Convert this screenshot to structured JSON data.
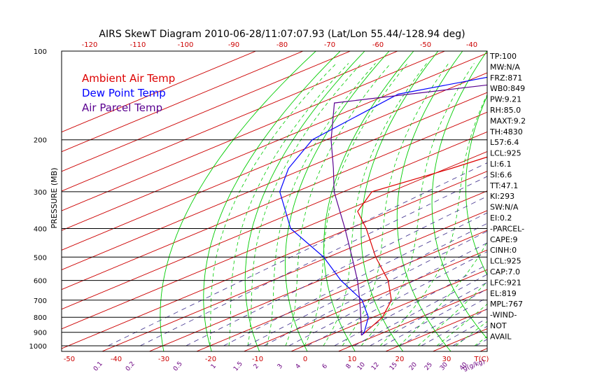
{
  "title": "AIRS SkewT Diagram 2010-06-28/11:07:07.93 (Lat/Lon 55.44/-128.94 deg)",
  "ylabel": "PRESSURE (MB)",
  "xlabel_right": "T(C)",
  "mixing_ratio_unit_label": "g(g/kg)",
  "colors": {
    "frame": "#000000",
    "isotherm": "#cc0000",
    "dry_adiabat": "#00cc00",
    "moist_adiabat": "#00cc00",
    "mixing_ratio": "#3a2a8a",
    "axis_text_red": "#cc0000",
    "axis_text_mix": "#6a0080",
    "ambient": "#dd0000",
    "dewpoint": "#0000ff",
    "parcel": "#5a0090"
  },
  "chart_data": {
    "type": "line",
    "subtype": "skew-T log-p",
    "y_scale": "log",
    "pressure_levels": [
      "100",
      "200",
      "300",
      "400",
      "500",
      "600",
      "700",
      "800",
      "900",
      "1000"
    ],
    "bottom_temp_ticks": [
      "-50",
      "-40",
      "-30",
      "-20",
      "-10",
      "0",
      "10",
      "20",
      "30"
    ],
    "top_temp_ticks": [
      "-120",
      "-110",
      "-100",
      "-90",
      "-80",
      "-70",
      "-60",
      "-50",
      "-40"
    ],
    "mixing_ratio_ticks": [
      "0.1",
      "0.2",
      "0.5",
      "1",
      "1.5",
      "2",
      "3",
      "4",
      "6",
      "8",
      "10",
      "12",
      "15",
      "20",
      "25",
      "30",
      "40"
    ],
    "legend": [
      {
        "name": "Ambient Air Temp",
        "color": "#dd0000"
      },
      {
        "name": "Dew Point Temp",
        "color": "#0000ff"
      },
      {
        "name": "Air Parcel Temp",
        "color": "#5a0090"
      }
    ],
    "legend_position": "top-left",
    "series": [
      {
        "name": "Ambient Air Temp",
        "color": "#dd0000",
        "points": [
          [
            100,
            -50
          ],
          [
            120,
            -56.5
          ],
          [
            150,
            -59
          ],
          [
            200,
            -54.5
          ],
          [
            250,
            -59
          ],
          [
            300,
            -64
          ],
          [
            350,
            -57
          ],
          [
            400,
            -46.5
          ],
          [
            500,
            -30
          ],
          [
            600,
            -15.5
          ],
          [
            700,
            -4.8
          ],
          [
            800,
            2
          ],
          [
            900,
            6
          ],
          [
            921,
            6.7
          ]
        ]
      },
      {
        "name": "Dew Point Temp",
        "color": "#0000ff",
        "points": [
          [
            100,
            -95
          ],
          [
            120,
            -96
          ],
          [
            140,
            -108
          ],
          [
            200,
            -103
          ],
          [
            250,
            -93.5
          ],
          [
            300,
            -83.5
          ],
          [
            400,
            -62.5
          ],
          [
            500,
            -41
          ],
          [
            600,
            -25.5
          ],
          [
            700,
            -11
          ],
          [
            800,
            -1
          ],
          [
            900,
            5.8
          ],
          [
            921,
            6.7
          ]
        ]
      },
      {
        "name": "Air Parcel Temp",
        "color": "#5a0090",
        "points": [
          [
            921,
            6.7
          ],
          [
            900,
            5.2
          ],
          [
            800,
            -2.6
          ],
          [
            700,
            -11.5
          ],
          [
            600,
            -22
          ],
          [
            500,
            -35
          ],
          [
            400,
            -51
          ],
          [
            300,
            -72
          ],
          [
            250,
            -84
          ],
          [
            200,
            -99
          ],
          [
            150,
            -117
          ],
          [
            100,
            -50
          ]
        ]
      }
    ],
    "indices": [
      "TP:100",
      "MW:N/A",
      "FRZ:871",
      "WB0:849",
      "PW:9.21",
      "RH:85.0",
      "MAXT:9.2",
      "TH:4830",
      "L57:6.4",
      "LCL:925",
      "LI:6.1",
      "SI:6.6",
      "TT:47.1",
      "KI:293",
      "SW:N/A",
      "EI:0.2",
      "-PARCEL-",
      "CAPE:9",
      "CINH:0",
      "LCL:925",
      "CAP:7.0",
      "LFC:921",
      "EL:819",
      "MPL:767",
      "-WIND-",
      "NOT",
      "AVAIL"
    ]
  }
}
